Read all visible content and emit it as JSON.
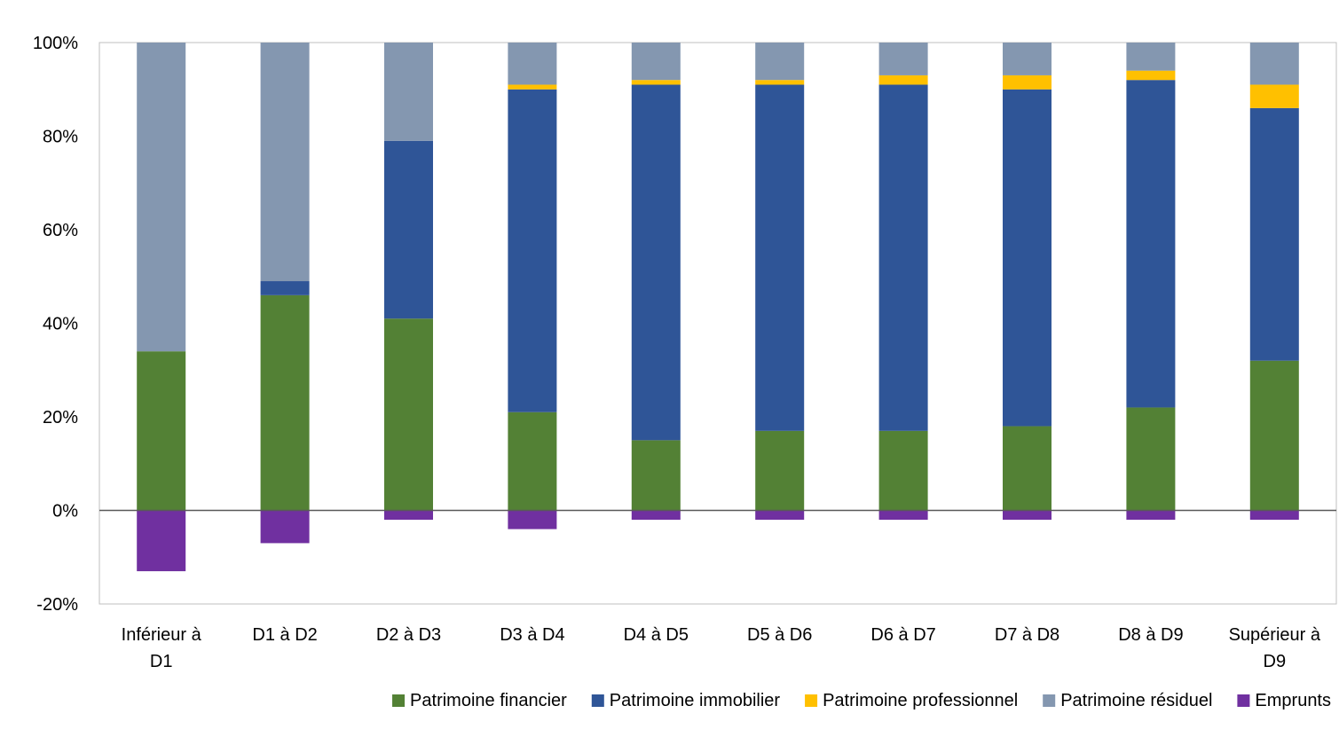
{
  "chart_data": {
    "type": "bar",
    "stacked": true,
    "categories": [
      [
        "Inférieur à",
        "D1"
      ],
      [
        "D1 à D2"
      ],
      [
        "D2 à D3"
      ],
      [
        "D3 à D4"
      ],
      [
        "D4 à D5"
      ],
      [
        "D5 à D6"
      ],
      [
        "D6 à D7"
      ],
      [
        "D7 à D8"
      ],
      [
        "D8 à D9"
      ],
      [
        "Supérieur à",
        "D9"
      ]
    ],
    "series": [
      {
        "name": "Patrimoine financier",
        "color": "#538135",
        "values": [
          34,
          46,
          41,
          21,
          15,
          17,
          17,
          18,
          22,
          32
        ]
      },
      {
        "name": "Patrimoine immobilier",
        "color": "#2F5597",
        "values": [
          0,
          3,
          38,
          69,
          76,
          74,
          74,
          72,
          70,
          54
        ]
      },
      {
        "name": "Patrimoine professionnel",
        "color": "#FFC000",
        "values": [
          0,
          0,
          0,
          1,
          1,
          1,
          2,
          3,
          2,
          5
        ]
      },
      {
        "name": "Patrimoine résiduel",
        "color": "#8497B0",
        "values": [
          66,
          51,
          21,
          9,
          8,
          8,
          7,
          7,
          6,
          9
        ]
      },
      {
        "name": "Emprunts",
        "color": "#7030A0",
        "values": [
          -13,
          -7,
          -2,
          -4,
          -2,
          -2,
          -2,
          -2,
          -2,
          -2
        ]
      }
    ],
    "yticks": [
      "100%",
      "80%",
      "60%",
      "40%",
      "20%",
      "0%",
      "-20%"
    ],
    "ytick_values": [
      100,
      80,
      60,
      40,
      20,
      0,
      -20
    ],
    "ylim": [
      -20,
      100
    ],
    "grid": false,
    "legend_position": "bottom"
  }
}
